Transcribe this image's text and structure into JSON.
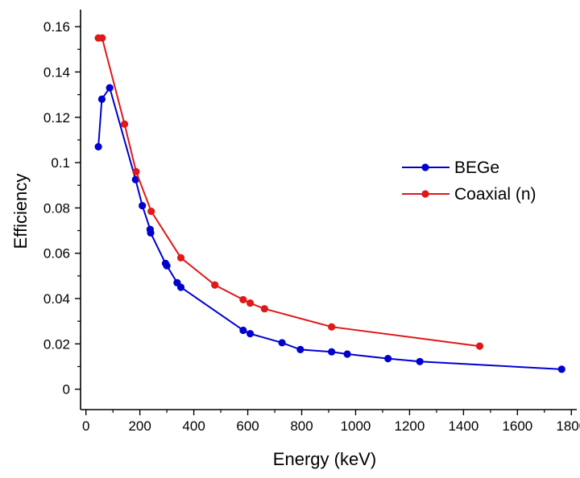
{
  "chart_data": {
    "type": "line",
    "title": "",
    "xlabel": "Energy (keV)",
    "ylabel": "Efficiency",
    "xlim": [
      -20,
      1820
    ],
    "ylim": [
      -0.009,
      0.1675
    ],
    "xticks": [
      0,
      200,
      400,
      600,
      800,
      1000,
      1200,
      1400,
      1600,
      1800
    ],
    "xtick_labels": [
      "0",
      "200",
      "400",
      "600",
      "800",
      "1000",
      "1200",
      "1400",
      "1600",
      "1800"
    ],
    "yticks": [
      0,
      0.02,
      0.04,
      0.06,
      0.08,
      0.1,
      0.12,
      0.14,
      0.16
    ],
    "ytick_labels": [
      "0",
      "0.02",
      "0.04",
      "0.06",
      "0.08",
      "0.1",
      "0.12",
      "0.14",
      "0.16"
    ],
    "grid": false,
    "legend_position": "right",
    "series": [
      {
        "name": "BEGe",
        "color": "#0000d0",
        "x": [
          46,
          59,
          88,
          184,
          209,
          238,
          240,
          295,
          300,
          338,
          352,
          583,
          609,
          727,
          795,
          911,
          969,
          1120,
          1238,
          1764
        ],
        "y": [
          0.107,
          0.128,
          0.133,
          0.0925,
          0.081,
          0.0705,
          0.069,
          0.0555,
          0.0545,
          0.047,
          0.045,
          0.026,
          0.0245,
          0.0205,
          0.0175,
          0.0165,
          0.0155,
          0.0135,
          0.0122,
          0.0088
        ]
      },
      {
        "name": "Coaxial (n)",
        "color": "#e01818",
        "x": [
          46,
          60,
          143,
          186,
          242,
          352,
          478,
          583,
          609,
          662,
          911,
          1460
        ],
        "y": [
          0.155,
          0.155,
          0.117,
          0.096,
          0.0785,
          0.058,
          0.046,
          0.0395,
          0.038,
          0.0355,
          0.0275,
          0.019
        ]
      }
    ]
  }
}
